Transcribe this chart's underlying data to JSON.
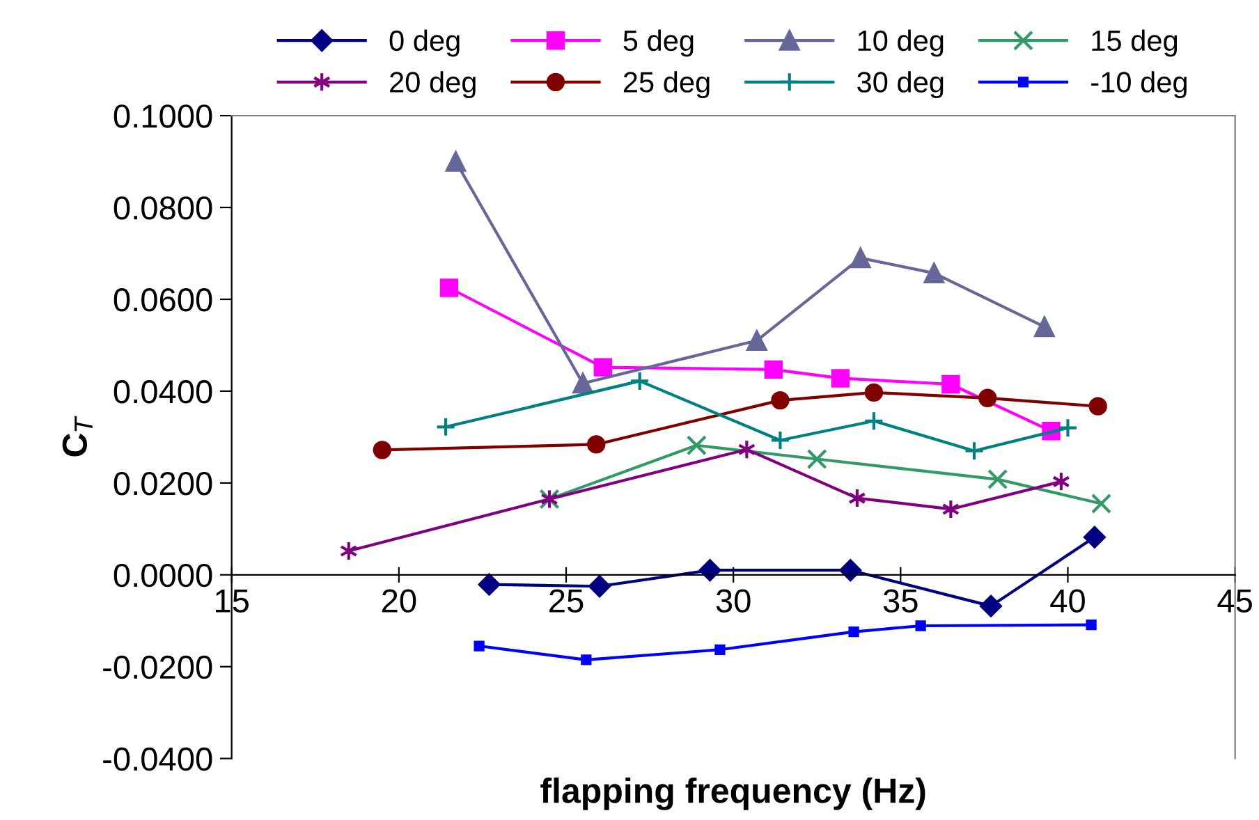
{
  "chart_data": {
    "type": "line",
    "xlabel": "flapping frequency (Hz)",
    "ylabel": "C$_{T}$",
    "xlim": [
      15,
      45
    ],
    "xticks": [
      15,
      20,
      25,
      30,
      35,
      40,
      45
    ],
    "ylim": [
      -0.04,
      0.1
    ],
    "yticks": [
      {
        "value": -0.04,
        "label": "-0.0400"
      },
      {
        "value": -0.02,
        "label": "-0.0200"
      },
      {
        "value": 0,
        "label": "0.0000"
      },
      {
        "value": 0.02,
        "label": "0.0200"
      },
      {
        "value": 0.04,
        "label": "0.0400"
      },
      {
        "value": 0.06,
        "label": "0.0600"
      },
      {
        "value": 0.08,
        "label": "0.0800"
      },
      {
        "value": 0.1,
        "label": "0.1000"
      }
    ],
    "grid": false,
    "legend": "top",
    "line_style": "solid",
    "series": [
      {
        "name": "0 deg",
        "color": "#000080",
        "marker": "diamond",
        "x": [
          22.7,
          26.0,
          29.3,
          33.5,
          37.7,
          40.8
        ],
        "values": [
          -0.0021,
          -0.0025,
          0.001,
          0.001,
          -0.0068,
          0.0082
        ]
      },
      {
        "name": "5 deg",
        "color": "#ff00ff",
        "marker": "square",
        "x": [
          21.5,
          26.1,
          31.2,
          33.2,
          36.5,
          39.5
        ],
        "values": [
          0.0625,
          0.0452,
          0.0447,
          0.0428,
          0.0415,
          0.0313
        ]
      },
      {
        "name": "10 deg",
        "color": "#666699",
        "marker": "triangle",
        "x": [
          21.7,
          25.5,
          30.7,
          33.8,
          36.0,
          39.3
        ],
        "values": [
          0.09,
          0.0417,
          0.051,
          0.069,
          0.0657,
          0.054
        ]
      },
      {
        "name": "15 deg",
        "color": "#339966",
        "marker": "cross",
        "x": [
          24.5,
          28.9,
          32.5,
          37.9,
          41.0
        ],
        "values": [
          0.0165,
          0.0282,
          0.0252,
          0.0208,
          0.0155
        ]
      },
      {
        "name": "20 deg",
        "color": "#800080",
        "marker": "cross",
        "x": [
          18.5,
          24.5,
          30.4,
          33.7,
          36.5,
          39.8
        ],
        "values": [
          0.0052,
          0.0165,
          0.0273,
          0.0167,
          0.0143,
          0.0203
        ]
      },
      {
        "name": "25 deg",
        "color": "#800000",
        "marker": "circle",
        "x": [
          19.5,
          25.9,
          31.4,
          34.2,
          37.6,
          40.9
        ],
        "values": [
          0.0272,
          0.0284,
          0.038,
          0.0397,
          0.0385,
          0.0367
        ]
      },
      {
        "name": "30 deg",
        "color": "#008080",
        "marker": "cross",
        "x": [
          21.4,
          27.2,
          31.4,
          34.2,
          37.2,
          40.0
        ],
        "values": [
          0.0322,
          0.0422,
          0.0293,
          0.0335,
          0.027,
          0.032
        ]
      },
      {
        "name": "-10 deg",
        "color": "#0000ff",
        "marker": "square",
        "x": [
          22.4,
          25.6,
          29.6,
          33.6,
          35.6,
          40.7
        ],
        "values": [
          -0.0155,
          -0.0185,
          -0.0163,
          -0.0124,
          -0.0111,
          -0.0109
        ]
      }
    ]
  }
}
